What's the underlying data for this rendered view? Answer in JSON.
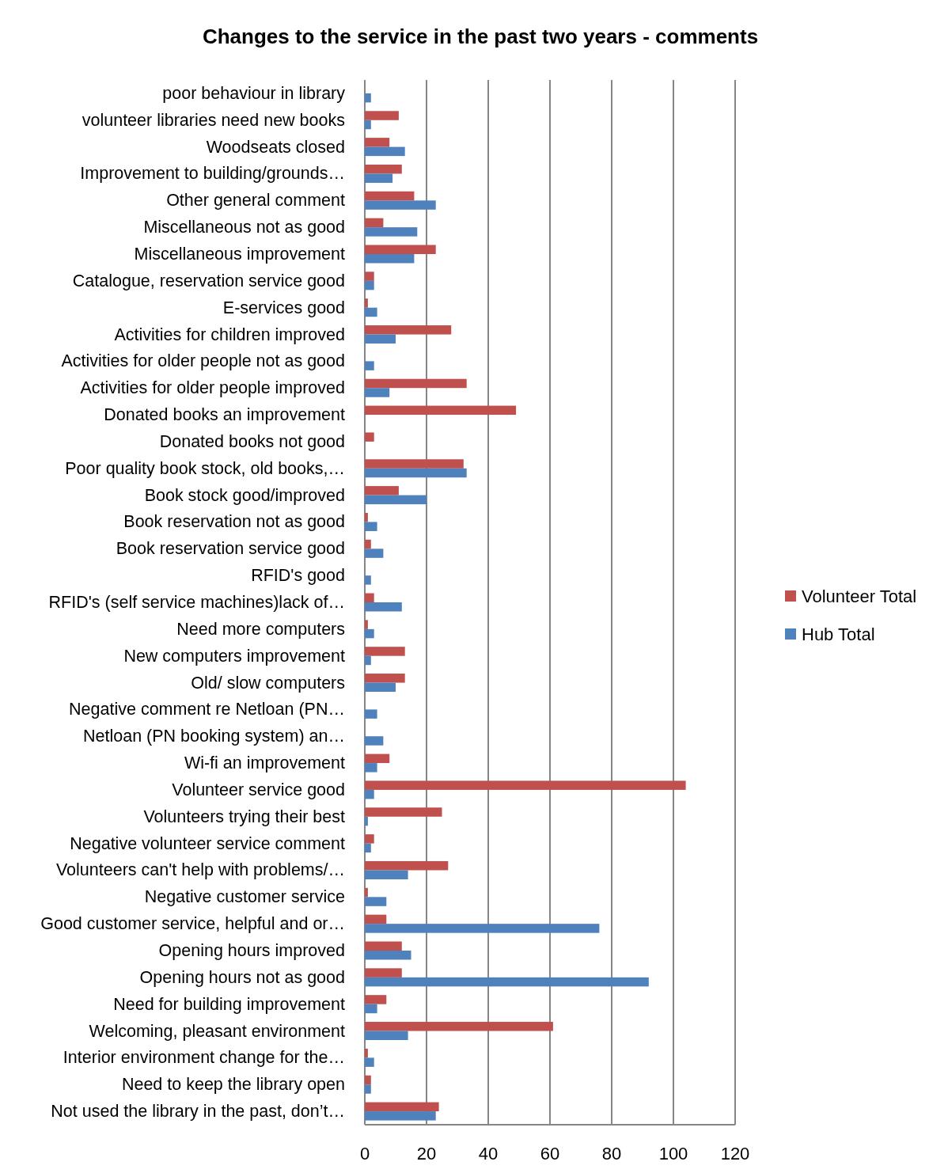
{
  "chart_data": {
    "type": "bar",
    "orientation": "horizontal",
    "title": "Changes to the service in the past two years - comments",
    "categories": [
      "poor behaviour in library",
      "volunteer libraries need new books",
      "Woodseats closed",
      "Improvement to building/grounds…",
      "Other general comment",
      "Miscellaneous not as good",
      "Miscellaneous improvement",
      "Catalogue, reservation service good",
      "E-services good",
      "Activities for children improved",
      "Activities for older people not as good",
      "Activities for older people improved",
      "Donated books an improvement",
      "Donated books not good",
      "Poor quality book stock, old books,…",
      "Book stock good/improved",
      "Book reservation not as good",
      "Book reservation service good",
      "RFID's good",
      "RFID's (self service machines)lack of…",
      "Need more computers",
      "New computers improvement",
      "Old/ slow computers",
      "Negative comment re Netloan (PN…",
      "Netloan (PN booking system) an…",
      "Wi-fi an improvement",
      "Volunteer service good",
      "Volunteers trying their best",
      "Negative volunteer service comment",
      "Volunteers can't help with problems/…",
      "Negative customer service",
      "Good customer service, helpful and or…",
      "Opening hours improved",
      "Opening hours not as good",
      "Need for building improvement",
      "Welcoming, pleasant environment",
      "Interior environment change for the…",
      "Need to keep the library open",
      "Not used the library in the past, don’t…"
    ],
    "series": [
      {
        "name": "Volunteer Total",
        "color": "#c0504d",
        "values": [
          0,
          11,
          8,
          12,
          16,
          6,
          23,
          3,
          1,
          28,
          0,
          33,
          49,
          3,
          32,
          11,
          1,
          2,
          0,
          3,
          1,
          13,
          13,
          0,
          0,
          8,
          104,
          25,
          3,
          27,
          1,
          7,
          12,
          12,
          7,
          61,
          1,
          2,
          24
        ]
      },
      {
        "name": "Hub Total",
        "color": "#4f81bd",
        "values": [
          2,
          2,
          13,
          9,
          23,
          17,
          16,
          3,
          4,
          10,
          3,
          8,
          0,
          0,
          33,
          20,
          4,
          6,
          2,
          12,
          3,
          2,
          10,
          4,
          6,
          4,
          3,
          1,
          2,
          14,
          7,
          76,
          15,
          92,
          4,
          14,
          3,
          2,
          23
        ]
      }
    ],
    "xlim": [
      0,
      120
    ],
    "xticks": [
      0,
      20,
      40,
      60,
      80,
      100,
      120
    ],
    "grid": "x",
    "legend": "right"
  }
}
